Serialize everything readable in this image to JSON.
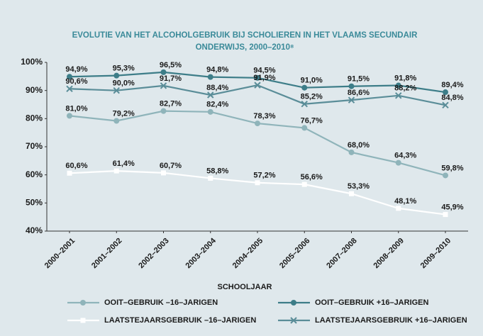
{
  "chart_data": {
    "type": "line",
    "title": [
      "EVOLUTIE VAN HET ALCOHOLGEBRUIK BIJ SCHOLIEREN IN HET VLAAMS SECUNDAIR",
      "ONDERWIJS, 2000–2010⁸"
    ],
    "x_label": "SCHOOLJAAR",
    "categories": [
      "2000–2001",
      "2001–2002",
      "2002–2003",
      "2003–2004",
      "2004–2005",
      "2005–2006",
      "2007–2008",
      "2008–2009",
      "2009–2010"
    ],
    "series": [
      {
        "name": "OOIT–GEBRUIK –16–JARIGEN",
        "color": "#8fb4ba",
        "marker": "circle",
        "values": [
          81.0,
          79.2,
          82.7,
          82.4,
          78.3,
          76.7,
          68.0,
          64.3,
          59.8
        ],
        "value_labels": [
          "81,0%",
          "79,2%",
          "82,7%",
          "82,4%",
          "78,3%",
          "76,7%",
          "68,0%",
          "64,3%",
          "59,8%"
        ]
      },
      {
        "name": "OOIT–GEBRUIK +16–JARIGEN",
        "color": "#3d7d88",
        "marker": "circle",
        "values": [
          94.9,
          95.3,
          96.5,
          94.8,
          94.5,
          91.0,
          91.5,
          91.8,
          89.4
        ],
        "value_labels": [
          "94,9%",
          "95,3%",
          "96,5%",
          "94,8%",
          "94,5%",
          "91,0%",
          "91,5%",
          "91,8%",
          "89,4%"
        ]
      },
      {
        "name": "LAATSTEJAARSGEBRUIK –16–JARIGEN",
        "color": "#ffffff",
        "marker": "square",
        "values": [
          60.6,
          61.4,
          60.7,
          58.8,
          57.2,
          56.6,
          53.3,
          48.1,
          45.9
        ],
        "value_labels": [
          "60,6%",
          "61,4%",
          "60,7%",
          "58,8%",
          "57,2%",
          "56,6%",
          "53,3%",
          "48,1%",
          "45,9%"
        ]
      },
      {
        "name": "LAATSTEJAARSGEBRUIK +16–JARIGEN",
        "color": "#5a8d98",
        "marker": "x",
        "values": [
          90.6,
          90.0,
          91.7,
          88.4,
          91.9,
          85.2,
          86.6,
          88.2,
          84.8
        ],
        "value_labels": [
          "90,6%",
          "90,0%",
          "91,7%",
          "88,4%",
          "91,9%",
          "85,2%",
          "86,6%",
          "88,2%",
          "84,8%"
        ]
      }
    ],
    "ylim": [
      40,
      100
    ],
    "yticks": [
      {
        "value": 40,
        "label": "40%"
      },
      {
        "value": 50,
        "label": "50%"
      },
      {
        "value": 60,
        "label": "60%"
      },
      {
        "value": 70,
        "label": "70%"
      },
      {
        "value": 80,
        "label": "80%"
      },
      {
        "value": 90,
        "label": "90%"
      },
      {
        "value": 100,
        "label": "100%"
      }
    ],
    "grid": false
  }
}
